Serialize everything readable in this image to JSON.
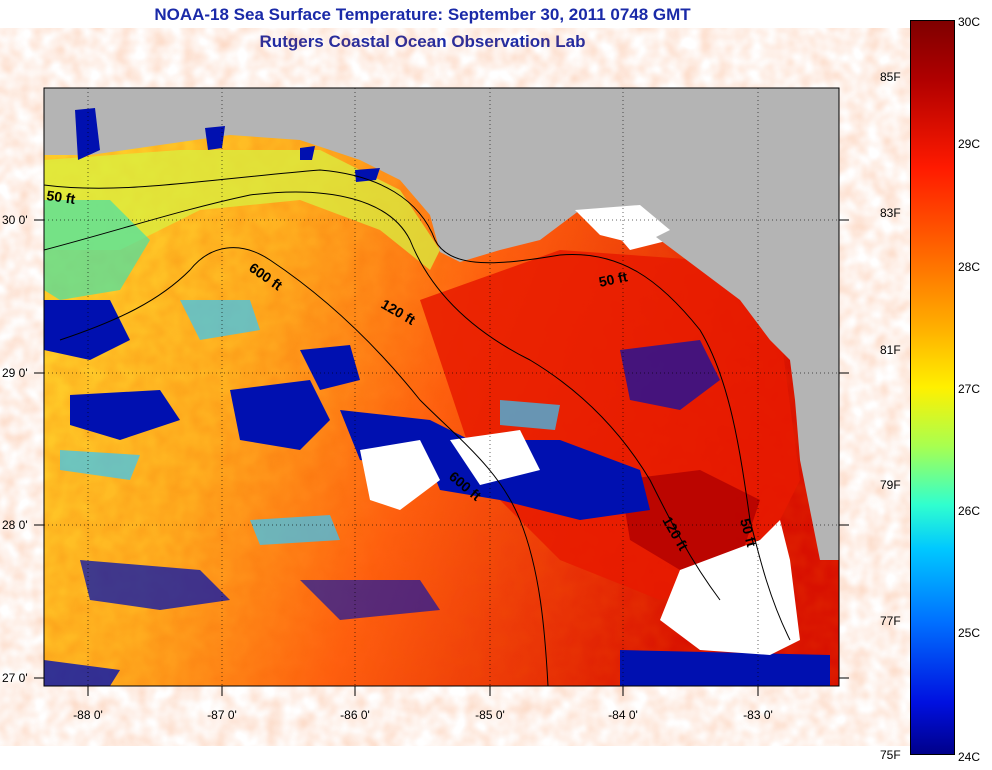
{
  "header": {
    "title": "NOAA-18 Sea Surface Temperature:  September 30, 2011 0748 GMT",
    "subtitle": "Rutgers Coastal Ocean Observation Lab"
  },
  "map": {
    "lat_labels": [
      "30 0'",
      "29 0'",
      "28 0'",
      "27 0'"
    ],
    "lon_labels": [
      "-88 0'",
      "-87 0'",
      "-86 0'",
      "-85 0'",
      "-84 0'",
      "-83 0'"
    ],
    "contour_labels": [
      "50 ft",
      "600 ft",
      "120 ft",
      "50 ft",
      "600 ft",
      "120 ft",
      "50 ft"
    ]
  },
  "colorbar": {
    "fahrenheit_labels": [
      "85F",
      "83F",
      "81F",
      "79F",
      "77F",
      "75F"
    ],
    "celsius_labels": [
      "30C",
      "29C",
      "28C",
      "27C",
      "26C",
      "25C",
      "24C"
    ]
  },
  "colors": {
    "title": "#1a2aa8",
    "land": "#b4b4b4",
    "cloud": "#ffffff",
    "warm": "#e02000",
    "cold": "#0010b0"
  }
}
